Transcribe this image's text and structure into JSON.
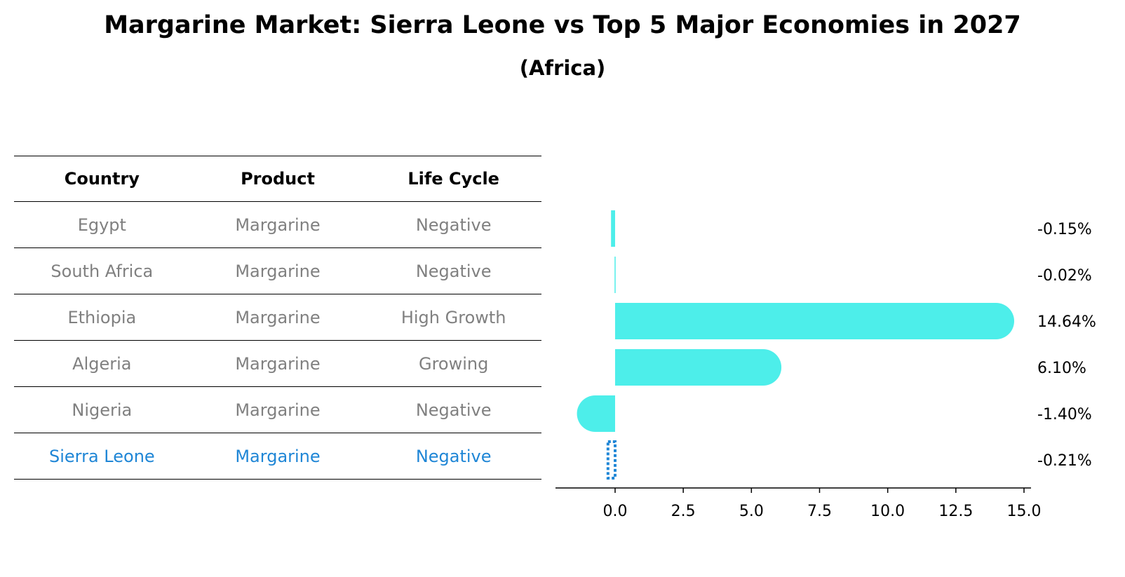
{
  "title": "Margarine Market: Sierra Leone vs Top 5 Major Economies in 2027",
  "subtitle": "(Africa)",
  "colors": {
    "bar": "#4deeea",
    "highlight": "#1f86d6",
    "table_text": "#808080"
  },
  "table": {
    "headers": [
      "Country",
      "Product",
      "Life Cycle"
    ],
    "rows": [
      {
        "country": "Egypt",
        "product": "Margarine",
        "life_cycle": "Negative",
        "highlight": false
      },
      {
        "country": "South Africa",
        "product": "Margarine",
        "life_cycle": "Negative",
        "highlight": false
      },
      {
        "country": "Ethiopia",
        "product": "Margarine",
        "life_cycle": "High Growth",
        "highlight": false
      },
      {
        "country": "Algeria",
        "product": "Margarine",
        "life_cycle": "Growing",
        "highlight": false
      },
      {
        "country": "Nigeria",
        "product": "Margarine",
        "life_cycle": "Negative",
        "highlight": false
      },
      {
        "country": "Sierra Leone",
        "product": "Margarine",
        "life_cycle": "Negative",
        "highlight": true
      }
    ]
  },
  "chart_data": {
    "type": "bar",
    "orientation": "horizontal",
    "categories": [
      "Egypt",
      "South Africa",
      "Ethiopia",
      "Algeria",
      "Nigeria",
      "Sierra Leone"
    ],
    "values": [
      -0.15,
      -0.02,
      14.64,
      6.1,
      -1.4,
      -0.21
    ],
    "value_labels": [
      "-0.15%",
      "-0.02%",
      "14.64%",
      "6.10%",
      "-1.40%",
      "-0.21%"
    ],
    "highlight_category": "Sierra Leone",
    "xlim": [
      -2.2,
      15.5
    ],
    "xticks": [
      0.0,
      2.5,
      5.0,
      7.5,
      10.0,
      12.5,
      15.0
    ],
    "xtick_labels": [
      "0.0",
      "2.5",
      "5.0",
      "7.5",
      "10.0",
      "12.5",
      "15.0"
    ],
    "xlabel": "",
    "ylabel": "",
    "grid": false
  }
}
